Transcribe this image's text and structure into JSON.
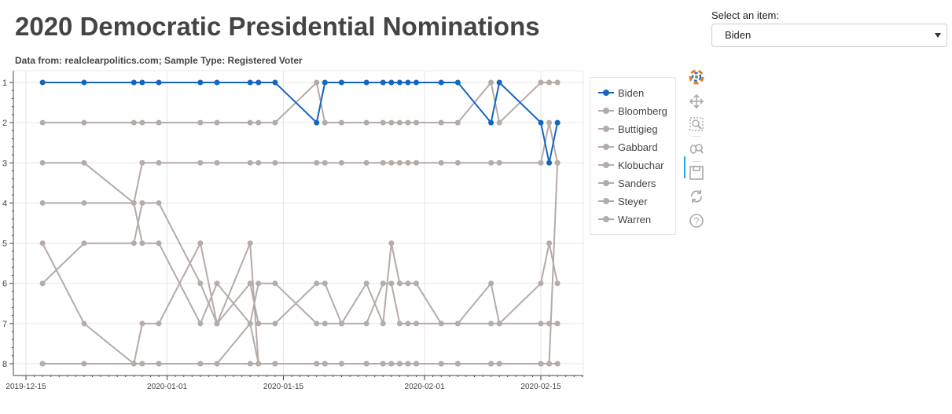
{
  "page": {
    "title": "2020 Democratic Presidential Nominations",
    "subtitle": "Data from: realclearpolitics.com; Sample Type: Registered Voter"
  },
  "select": {
    "label": "Select an item:",
    "value": "Biden"
  },
  "colors": {
    "highlight": "#1565c0",
    "muted": "#b5aba8",
    "grid": "#e6e6e6",
    "axis": "#444444"
  },
  "toolbar": {
    "tools": [
      {
        "name": "bokeh-logo-icon",
        "active": false
      },
      {
        "name": "pan-icon",
        "active": true
      },
      {
        "name": "box-zoom-icon",
        "active": false
      },
      {
        "name": "wheel-zoom-icon",
        "active": false
      },
      {
        "name": "save-icon",
        "active": false
      },
      {
        "name": "reset-icon",
        "active": false
      },
      {
        "name": "help-icon",
        "active": false
      }
    ]
  },
  "chart_data": {
    "type": "line",
    "title": "2020 Democratic Presidential Nominations",
    "xlabel": "",
    "ylabel": "",
    "x_axis": "datetime",
    "y_axis_inverted": true,
    "ylim": [
      8,
      1
    ],
    "xlim": [
      "2019-12-15",
      "2020-02-20"
    ],
    "y_ticks": [
      1,
      2,
      3,
      4,
      5,
      6,
      7,
      8
    ],
    "x_ticks": [
      "2019-12-15",
      "2020-01-01",
      "2020-01-15",
      "2020-02-01",
      "2020-02-15"
    ],
    "grid": true,
    "legend_position": "right",
    "highlighted_series": "Biden",
    "x": [
      "2019-12-17",
      "2019-12-22",
      "2019-12-28",
      "2019-12-29",
      "2019-12-31",
      "2020-01-05",
      "2020-01-07",
      "2020-01-11",
      "2020-01-12",
      "2020-01-14",
      "2020-01-19",
      "2020-01-20",
      "2020-01-22",
      "2020-01-25",
      "2020-01-27",
      "2020-01-28",
      "2020-01-29",
      "2020-01-30",
      "2020-01-31",
      "2020-02-03",
      "2020-02-05",
      "2020-02-09",
      "2020-02-10",
      "2020-02-15",
      "2020-02-16",
      "2020-02-17"
    ],
    "series": [
      {
        "name": "Biden",
        "values": [
          1,
          1,
          1,
          1,
          1,
          1,
          1,
          1,
          1,
          1,
          2,
          1,
          1,
          1,
          1,
          1,
          1,
          1,
          1,
          1,
          1,
          2,
          1,
          2,
          3,
          2
        ]
      },
      {
        "name": "Bloomberg",
        "values": [
          8,
          8,
          8,
          7,
          7,
          5,
          7,
          5,
          8,
          8,
          8,
          8,
          8,
          8,
          8,
          8,
          8,
          8,
          8,
          8,
          8,
          8,
          8,
          8,
          8,
          8
        ]
      },
      {
        "name": "Buttigieg",
        "values": [
          5,
          7,
          8,
          8,
          8,
          8,
          8,
          7,
          8,
          8,
          8,
          8,
          8,
          8,
          8,
          8,
          8,
          8,
          8,
          8,
          8,
          8,
          8,
          8,
          8,
          3
        ]
      },
      {
        "name": "Gabbard",
        "values": [
          3,
          3,
          4,
          5,
          5,
          7,
          6,
          7,
          6,
          6,
          7,
          7,
          7,
          7,
          6,
          6,
          7,
          7,
          7,
          7,
          7,
          7,
          7,
          7,
          7,
          7
        ]
      },
      {
        "name": "Klobuchar",
        "values": [
          6,
          5,
          5,
          4,
          4,
          6,
          7,
          6,
          7,
          7,
          6,
          6,
          7,
          6,
          7,
          5,
          6,
          6,
          6,
          7,
          7,
          6,
          7,
          6,
          5,
          6
        ]
      },
      {
        "name": "Sanders",
        "values": [
          2,
          2,
          2,
          2,
          2,
          2,
          2,
          2,
          2,
          2,
          1,
          2,
          2,
          2,
          2,
          2,
          2,
          2,
          2,
          2,
          2,
          1,
          2,
          1,
          1,
          1
        ]
      },
      {
        "name": "Steyer",
        "values": [
          8,
          8,
          8,
          8,
          8,
          8,
          8,
          8,
          8,
          8,
          8,
          8,
          8,
          8,
          8,
          8,
          8,
          8,
          8,
          8,
          8,
          8,
          8,
          8,
          8,
          8
        ]
      },
      {
        "name": "Warren",
        "values": [
          4,
          4,
          4,
          3,
          3,
          3,
          3,
          3,
          3,
          3,
          3,
          3,
          3,
          3,
          3,
          3,
          3,
          3,
          3,
          3,
          3,
          3,
          3,
          3,
          2,
          3
        ]
      }
    ]
  }
}
